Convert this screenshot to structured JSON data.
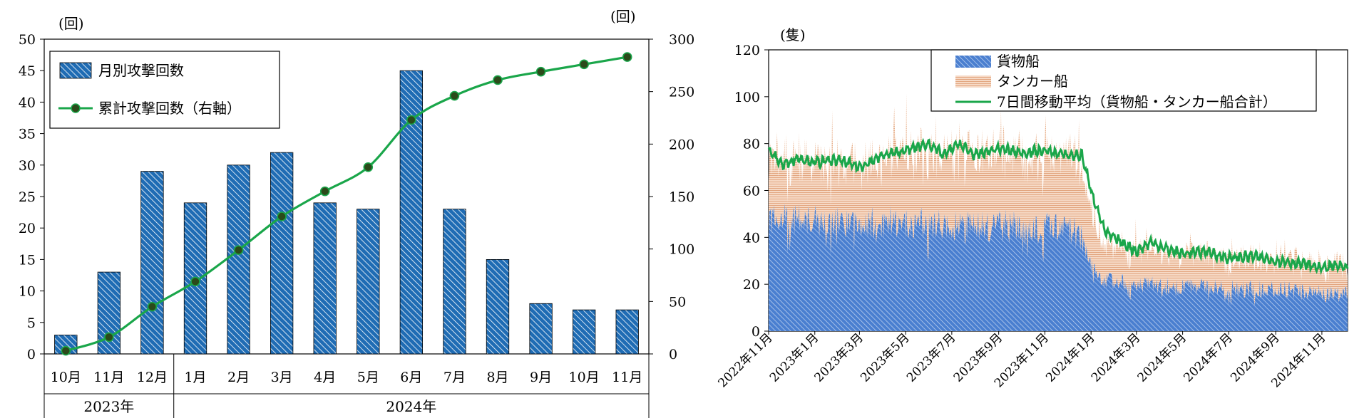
{
  "charts": {
    "left": {
      "y_left_unit": "(回)",
      "y_right_unit": "(回)",
      "legend": {
        "bar": "月別攻撃回数",
        "line": "累計攻撃回数（右軸）"
      },
      "year_groups": [
        "2023年",
        "2024年"
      ]
    },
    "right": {
      "y_unit": "(隻)",
      "legend": {
        "cargo": "貨物船",
        "tanker": "タンカー船",
        "ma": "7日間移動平均（貨物船・タンカー船合計）"
      }
    }
  },
  "colors": {
    "bar_fill": "#1f6cb4",
    "bar_hatch": "#ffffff",
    "line": "#1aa64a",
    "marker": "#2b4a1a",
    "cargo": "#4a7fd0",
    "tanker": "#e8b090",
    "ma": "#1aa64a"
  },
  "chart_data": [
    {
      "type": "bar",
      "categories": [
        "10月",
        "11月",
        "12月",
        "1月",
        "2月",
        "3月",
        "4月",
        "5月",
        "6月",
        "7月",
        "8月",
        "9月",
        "10月",
        "11月"
      ],
      "series": [
        {
          "name": "月別攻撃回数",
          "type": "bar",
          "axis": "left",
          "values": [
            3,
            13,
            29,
            24,
            30,
            32,
            24,
            23,
            45,
            23,
            15,
            8,
            7,
            7
          ]
        },
        {
          "name": "累計攻撃回数（右軸）",
          "type": "line",
          "axis": "right",
          "values": [
            3,
            16,
            45,
            69,
            99,
            131,
            155,
            178,
            223,
            246,
            261,
            269,
            276,
            283
          ]
        }
      ],
      "ylim": [
        0,
        50
      ],
      "yticks": [
        0,
        5,
        10,
        15,
        20,
        25,
        30,
        35,
        40,
        45,
        50
      ],
      "y2lim": [
        0,
        300
      ],
      "y2ticks": [
        0,
        50,
        100,
        150,
        200,
        250,
        300
      ],
      "groups": [
        {
          "label": "2023年",
          "span": [
            0,
            2
          ]
        },
        {
          "label": "2024年",
          "span": [
            3,
            13
          ]
        }
      ],
      "legend_position": "top-left"
    },
    {
      "type": "area",
      "x_ticks": [
        "2022年11月",
        "2023年1月",
        "2023年3月",
        "2023年5月",
        "2023年7月",
        "2023年9月",
        "2023年11月",
        "2024年1月",
        "2024年3月",
        "2024年5月",
        "2024年7月",
        "2024年9月",
        "2024年11月"
      ],
      "x_range": [
        "2022-11-01",
        "2024-12-05"
      ],
      "ylim": [
        0,
        120
      ],
      "yticks": [
        0,
        20,
        40,
        60,
        80,
        100,
        120
      ],
      "stacked": true,
      "series": [
        {
          "name": "貨物船",
          "type": "area",
          "approx_daily_level": [
            [
              "2022-11-01",
              48
            ],
            [
              "2023-01-01",
              47
            ],
            [
              "2023-03-01",
              46
            ],
            [
              "2023-05-01",
              47
            ],
            [
              "2023-07-01",
              45
            ],
            [
              "2023-09-01",
              45
            ],
            [
              "2023-11-01",
              44
            ],
            [
              "2023-12-15",
              42
            ],
            [
              "2024-01-01",
              28
            ],
            [
              "2024-01-15",
              22
            ],
            [
              "2024-03-01",
              20
            ],
            [
              "2024-05-01",
              19
            ],
            [
              "2024-07-01",
              18
            ],
            [
              "2024-09-01",
              18
            ],
            [
              "2024-11-01",
              16
            ],
            [
              "2024-12-05",
              16
            ]
          ]
        },
        {
          "name": "タンカー船",
          "type": "area",
          "approx_daily_level": [
            [
              "2022-11-01",
              26
            ],
            [
              "2023-01-01",
              25
            ],
            [
              "2023-03-01",
              25
            ],
            [
              "2023-05-01",
              30
            ],
            [
              "2023-07-01",
              29
            ],
            [
              "2023-09-01",
              30
            ],
            [
              "2023-11-01",
              31
            ],
            [
              "2023-12-15",
              30
            ],
            [
              "2024-01-01",
              25
            ],
            [
              "2024-01-15",
              15
            ],
            [
              "2024-03-01",
              15
            ],
            [
              "2024-05-01",
              14
            ],
            [
              "2024-07-01",
              13
            ],
            [
              "2024-09-01",
              13
            ],
            [
              "2024-11-01",
              12
            ],
            [
              "2024-12-05",
              12
            ]
          ]
        },
        {
          "name": "7日間移動平均（貨物船・タンカー船合計）",
          "type": "line",
          "points": [
            [
              "2022-11-01",
              77
            ],
            [
              "2022-11-20",
              71
            ],
            [
              "2022-12-10",
              74
            ],
            [
              "2023-01-01",
              72
            ],
            [
              "2023-02-01",
              73
            ],
            [
              "2023-03-01",
              70
            ],
            [
              "2023-04-01",
              75
            ],
            [
              "2023-05-01",
              77
            ],
            [
              "2023-06-01",
              80
            ],
            [
              "2023-06-20",
              75
            ],
            [
              "2023-07-10",
              80
            ],
            [
              "2023-08-01",
              75
            ],
            [
              "2023-09-01",
              78
            ],
            [
              "2023-10-01",
              76
            ],
            [
              "2023-11-01",
              77
            ],
            [
              "2023-12-01",
              75
            ],
            [
              "2023-12-20",
              75
            ],
            [
              "2024-01-01",
              60
            ],
            [
              "2024-01-20",
              42
            ],
            [
              "2024-02-10",
              38
            ],
            [
              "2024-03-01",
              34
            ],
            [
              "2024-03-20",
              38
            ],
            [
              "2024-04-10",
              35
            ],
            [
              "2024-05-01",
              33
            ],
            [
              "2024-06-01",
              34
            ],
            [
              "2024-07-01",
              31
            ],
            [
              "2024-08-01",
              32
            ],
            [
              "2024-09-01",
              30
            ],
            [
              "2024-10-01",
              29
            ],
            [
              "2024-11-01",
              27
            ],
            [
              "2024-11-20",
              28
            ],
            [
              "2024-12-05",
              27
            ]
          ]
        }
      ],
      "legend_position": "top"
    }
  ]
}
